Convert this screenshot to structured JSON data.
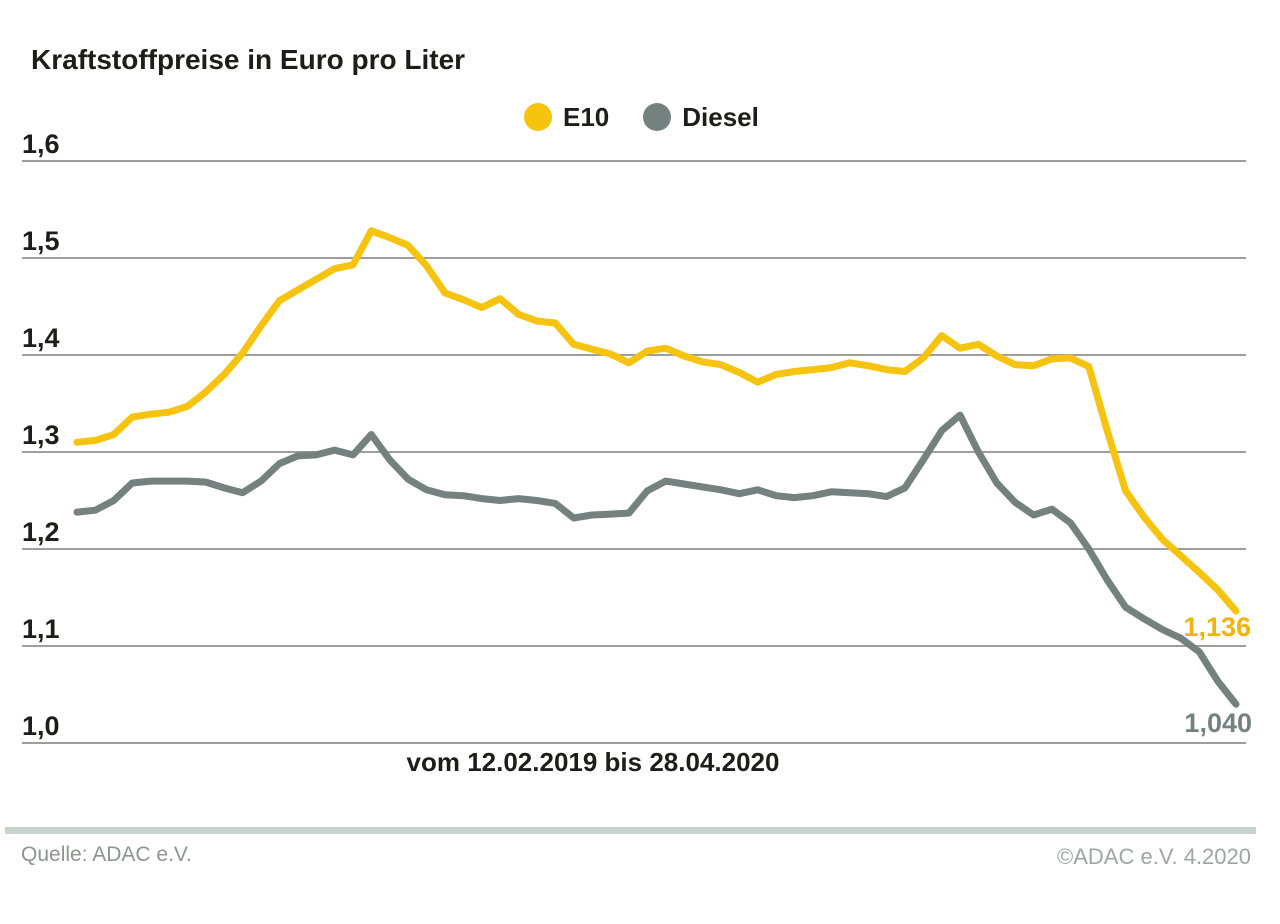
{
  "title": "Kraftstoffpreise in Euro pro Liter",
  "x_axis_label": "vom 12.02.2019 bis 28.04.2020",
  "footer": {
    "source": "Quelle: ADAC e.V.",
    "copyright": "©ADAC e.V. 4.2020"
  },
  "colors": {
    "e10": "#f6c30e",
    "e10_label": "#f0b40c",
    "diesel": "#74817e",
    "grid": "#9e9e9d",
    "text": "#1d1d1b",
    "footer_bar": "#c8d3ce",
    "footer_text": "#8c9590"
  },
  "chart_data": {
    "type": "line",
    "title": "Kraftstoffpreise in Euro pro Liter",
    "subtitle": "",
    "xlabel": "vom 12.02.2019 bis 28.04.2020",
    "ylabel": "Euro pro Liter",
    "x_unit": "week",
    "x_range": [
      "12.02.2019",
      "28.04.2020"
    ],
    "n_points": 64,
    "ylim": [
      1.0,
      1.6
    ],
    "grid": true,
    "legend_position": "top",
    "yticks": [
      {
        "value": 1.0,
        "label": "1,0"
      },
      {
        "value": 1.1,
        "label": "1,1"
      },
      {
        "value": 1.2,
        "label": "1,2"
      },
      {
        "value": 1.3,
        "label": "1,3"
      },
      {
        "value": 1.4,
        "label": "1,4"
      },
      {
        "value": 1.5,
        "label": "1,5"
      },
      {
        "value": 1.6,
        "label": "1,6"
      }
    ],
    "series": [
      {
        "id": "e10",
        "name": "E10",
        "color": "#f6c30e",
        "end_label": "1,136",
        "end_value": 1.136,
        "values": [
          1.31,
          1.312,
          1.318,
          1.336,
          1.339,
          1.341,
          1.347,
          1.362,
          1.38,
          1.402,
          1.43,
          1.456,
          1.467,
          1.478,
          1.489,
          1.493,
          1.528,
          1.521,
          1.513,
          1.492,
          1.464,
          1.457,
          1.449,
          1.458,
          1.442,
          1.435,
          1.433,
          1.411,
          1.406,
          1.401,
          1.392,
          1.404,
          1.407,
          1.399,
          1.393,
          1.39,
          1.382,
          1.372,
          1.38,
          1.383,
          1.385,
          1.387,
          1.392,
          1.389,
          1.385,
          1.383,
          1.397,
          1.42,
          1.407,
          1.411,
          1.399,
          1.39,
          1.389,
          1.396,
          1.397,
          1.388,
          1.322,
          1.26,
          1.233,
          1.21,
          1.193,
          1.176,
          1.158,
          1.136
        ]
      },
      {
        "id": "diesel",
        "name": "Diesel",
        "color": "#74817e",
        "end_label": "1,040",
        "end_value": 1.04,
        "values": [
          1.238,
          1.24,
          1.25,
          1.268,
          1.27,
          1.27,
          1.27,
          1.269,
          1.263,
          1.258,
          1.27,
          1.288,
          1.296,
          1.297,
          1.302,
          1.297,
          1.318,
          1.292,
          1.272,
          1.261,
          1.256,
          1.255,
          1.252,
          1.25,
          1.252,
          1.25,
          1.247,
          1.232,
          1.235,
          1.236,
          1.237,
          1.26,
          1.27,
          1.267,
          1.264,
          1.261,
          1.257,
          1.261,
          1.255,
          1.253,
          1.255,
          1.259,
          1.258,
          1.257,
          1.254,
          1.263,
          1.292,
          1.322,
          1.338,
          1.3,
          1.268,
          1.248,
          1.235,
          1.241,
          1.227,
          1.2,
          1.168,
          1.14,
          1.128,
          1.117,
          1.108,
          1.094,
          1.064,
          1.04
        ]
      }
    ]
  }
}
